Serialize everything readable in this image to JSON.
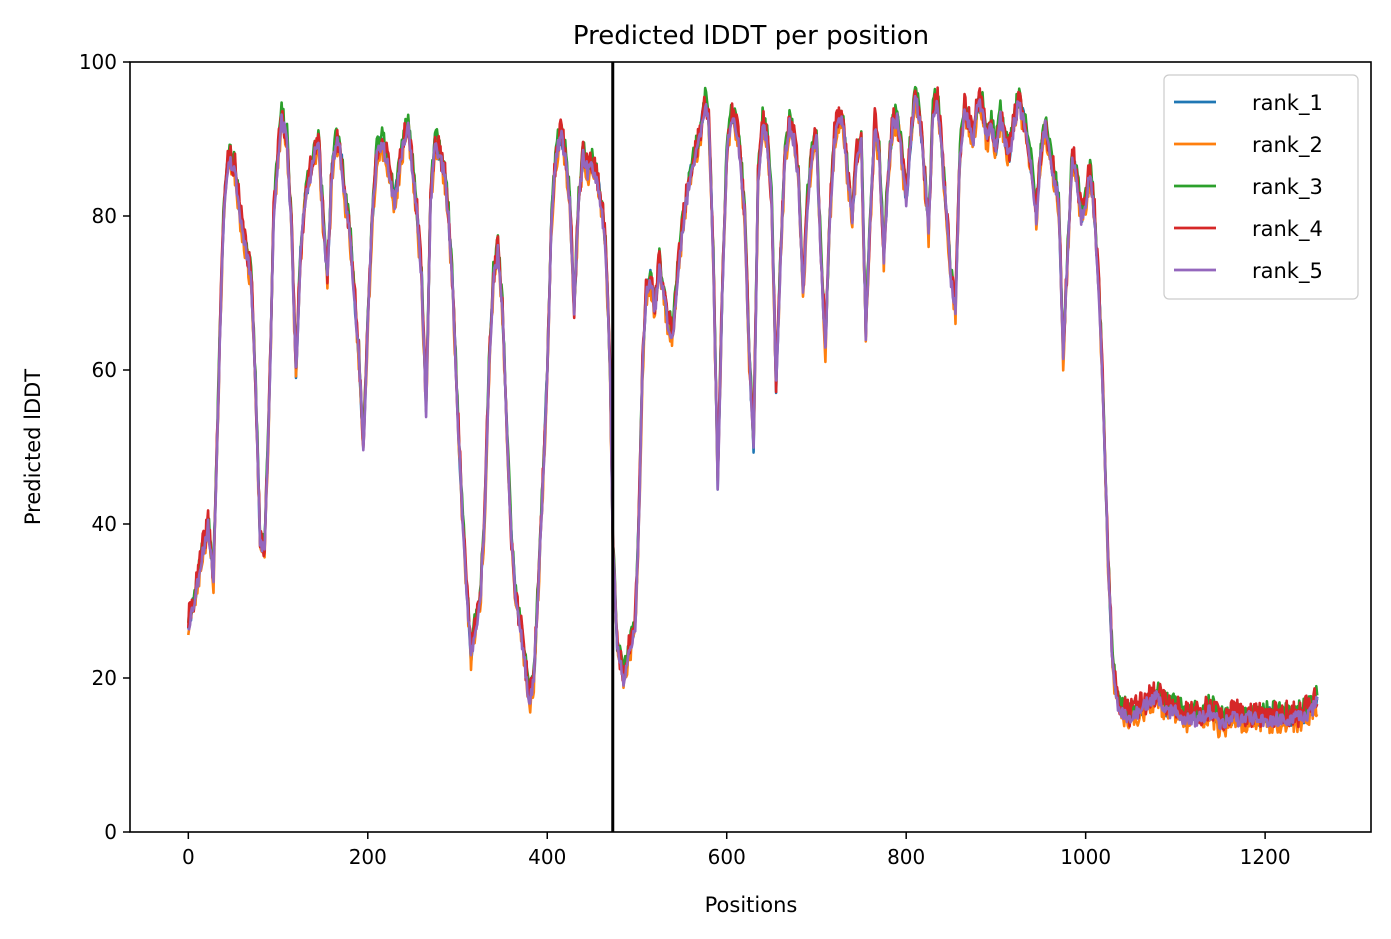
{
  "chart_data": {
    "type": "line",
    "title": "Predicted lDDT per position",
    "xlabel": "Positions",
    "ylabel": "Predicted lDDT",
    "xlim": [
      -65,
      1318
    ],
    "ylim": [
      0,
      100
    ],
    "xticks": [
      0,
      200,
      400,
      600,
      800,
      1000,
      1200
    ],
    "yticks": [
      0,
      20,
      40,
      60,
      80,
      100
    ],
    "grid": false,
    "legend_position": "top-right",
    "vline_x": 473,
    "vline_color": "#000000",
    "profile": [
      [
        0,
        27
      ],
      [
        8,
        31
      ],
      [
        15,
        36
      ],
      [
        22,
        40
      ],
      [
        28,
        33
      ],
      [
        32,
        50
      ],
      [
        36,
        68
      ],
      [
        40,
        82
      ],
      [
        45,
        88
      ],
      [
        52,
        86
      ],
      [
        58,
        80
      ],
      [
        64,
        76
      ],
      [
        70,
        72
      ],
      [
        75,
        58
      ],
      [
        80,
        38
      ],
      [
        85,
        37
      ],
      [
        90,
        55
      ],
      [
        95,
        80
      ],
      [
        100,
        88
      ],
      [
        104,
        93
      ],
      [
        110,
        90
      ],
      [
        115,
        78
      ],
      [
        120,
        60
      ],
      [
        125,
        75
      ],
      [
        130,
        82
      ],
      [
        135,
        85
      ],
      [
        140,
        88
      ],
      [
        145,
        90
      ],
      [
        150,
        80
      ],
      [
        155,
        72
      ],
      [
        160,
        86
      ],
      [
        165,
        90
      ],
      [
        170,
        88
      ],
      [
        175,
        82
      ],
      [
        180,
        78
      ],
      [
        185,
        70
      ],
      [
        190,
        62
      ],
      [
        195,
        50
      ],
      [
        200,
        66
      ],
      [
        205,
        80
      ],
      [
        210,
        88
      ],
      [
        215,
        90
      ],
      [
        220,
        88
      ],
      [
        225,
        85
      ],
      [
        230,
        82
      ],
      [
        235,
        86
      ],
      [
        240,
        90
      ],
      [
        245,
        92
      ],
      [
        250,
        86
      ],
      [
        255,
        80
      ],
      [
        260,
        72
      ],
      [
        265,
        55
      ],
      [
        270,
        82
      ],
      [
        275,
        90
      ],
      [
        280,
        88
      ],
      [
        285,
        86
      ],
      [
        290,
        80
      ],
      [
        295,
        70
      ],
      [
        300,
        55
      ],
      [
        305,
        42
      ],
      [
        310,
        32
      ],
      [
        315,
        23
      ],
      [
        320,
        27
      ],
      [
        325,
        30
      ],
      [
        330,
        40
      ],
      [
        335,
        60
      ],
      [
        340,
        72
      ],
      [
        345,
        76
      ],
      [
        350,
        68
      ],
      [
        355,
        52
      ],
      [
        360,
        38
      ],
      [
        365,
        30
      ],
      [
        370,
        27
      ],
      [
        375,
        22
      ],
      [
        380,
        17
      ],
      [
        385,
        20
      ],
      [
        390,
        32
      ],
      [
        395,
        45
      ],
      [
        400,
        60
      ],
      [
        405,
        80
      ],
      [
        410,
        88
      ],
      [
        415,
        91
      ],
      [
        420,
        88
      ],
      [
        425,
        82
      ],
      [
        430,
        68
      ],
      [
        435,
        82
      ],
      [
        440,
        88
      ],
      [
        445,
        86
      ],
      [
        450,
        87
      ],
      [
        455,
        85
      ],
      [
        460,
        82
      ],
      [
        465,
        76
      ],
      [
        470,
        60
      ],
      [
        473,
        38
      ],
      [
        478,
        24
      ],
      [
        485,
        20
      ],
      [
        492,
        24
      ],
      [
        498,
        27
      ],
      [
        502,
        40
      ],
      [
        506,
        60
      ],
      [
        510,
        70
      ],
      [
        515,
        72
      ],
      [
        520,
        68
      ],
      [
        525,
        74
      ],
      [
        530,
        70
      ],
      [
        535,
        66
      ],
      [
        540,
        65
      ],
      [
        545,
        72
      ],
      [
        550,
        78
      ],
      [
        555,
        82
      ],
      [
        560,
        86
      ],
      [
        565,
        88
      ],
      [
        570,
        90
      ],
      [
        576,
        95
      ],
      [
        580,
        92
      ],
      [
        585,
        75
      ],
      [
        590,
        45
      ],
      [
        595,
        70
      ],
      [
        600,
        88
      ],
      [
        605,
        93
      ],
      [
        610,
        92
      ],
      [
        615,
        88
      ],
      [
        620,
        80
      ],
      [
        625,
        62
      ],
      [
        630,
        50
      ],
      [
        635,
        85
      ],
      [
        640,
        92
      ],
      [
        645,
        90
      ],
      [
        650,
        82
      ],
      [
        655,
        58
      ],
      [
        660,
        75
      ],
      [
        665,
        88
      ],
      [
        670,
        92
      ],
      [
        675,
        90
      ],
      [
        680,
        85
      ],
      [
        685,
        70
      ],
      [
        690,
        82
      ],
      [
        695,
        88
      ],
      [
        700,
        90
      ],
      [
        705,
        75
      ],
      [
        710,
        63
      ],
      [
        715,
        80
      ],
      [
        720,
        90
      ],
      [
        725,
        93
      ],
      [
        730,
        92
      ],
      [
        735,
        85
      ],
      [
        740,
        80
      ],
      [
        745,
        88
      ],
      [
        750,
        90
      ],
      [
        755,
        65
      ],
      [
        760,
        80
      ],
      [
        765,
        92
      ],
      [
        770,
        88
      ],
      [
        775,
        75
      ],
      [
        780,
        85
      ],
      [
        785,
        92
      ],
      [
        790,
        93
      ],
      [
        795,
        88
      ],
      [
        800,
        82
      ],
      [
        805,
        90
      ],
      [
        810,
        96
      ],
      [
        815,
        93
      ],
      [
        820,
        86
      ],
      [
        825,
        78
      ],
      [
        830,
        94
      ],
      [
        835,
        95
      ],
      [
        840,
        88
      ],
      [
        845,
        80
      ],
      [
        850,
        72
      ],
      [
        855,
        68
      ],
      [
        860,
        88
      ],
      [
        865,
        94
      ],
      [
        870,
        92
      ],
      [
        875,
        90
      ],
      [
        880,
        95
      ],
      [
        885,
        94
      ],
      [
        890,
        90
      ],
      [
        895,
        92
      ],
      [
        900,
        89
      ],
      [
        905,
        93
      ],
      [
        910,
        90
      ],
      [
        915,
        88
      ],
      [
        920,
        92
      ],
      [
        925,
        95
      ],
      [
        930,
        93
      ],
      [
        935,
        90
      ],
      [
        940,
        86
      ],
      [
        945,
        80
      ],
      [
        950,
        88
      ],
      [
        955,
        92
      ],
      [
        960,
        88
      ],
      [
        965,
        85
      ],
      [
        970,
        82
      ],
      [
        975,
        62
      ],
      [
        980,
        75
      ],
      [
        985,
        88
      ],
      [
        990,
        85
      ],
      [
        995,
        80
      ],
      [
        1000,
        82
      ],
      [
        1005,
        86
      ],
      [
        1010,
        80
      ],
      [
        1015,
        70
      ],
      [
        1020,
        55
      ],
      [
        1025,
        35
      ],
      [
        1030,
        22
      ],
      [
        1035,
        17
      ],
      [
        1040,
        16
      ],
      [
        1050,
        15
      ],
      [
        1060,
        16
      ],
      [
        1070,
        17
      ],
      [
        1080,
        18
      ],
      [
        1090,
        16
      ],
      [
        1100,
        16
      ],
      [
        1110,
        15
      ],
      [
        1120,
        15
      ],
      [
        1130,
        15
      ],
      [
        1140,
        16
      ],
      [
        1150,
        14
      ],
      [
        1160,
        15
      ],
      [
        1170,
        15
      ],
      [
        1180,
        15
      ],
      [
        1190,
        15
      ],
      [
        1200,
        15
      ],
      [
        1210,
        15
      ],
      [
        1220,
        15
      ],
      [
        1230,
        15
      ],
      [
        1240,
        15
      ],
      [
        1250,
        16
      ],
      [
        1258,
        17
      ]
    ],
    "series": [
      {
        "name": "rank_1",
        "color": "#1f77b4",
        "offset": 0.0,
        "noise": 1.2,
        "seed": 11
      },
      {
        "name": "rank_2",
        "color": "#ff7f0e",
        "offset": -0.6,
        "noise": 1.6,
        "seed": 23
      },
      {
        "name": "rank_3",
        "color": "#2ca02c",
        "offset": 0.8,
        "noise": 1.3,
        "seed": 37
      },
      {
        "name": "rank_4",
        "color": "#d62728",
        "offset": 0.4,
        "noise": 1.8,
        "seed": 41
      },
      {
        "name": "rank_5",
        "color": "#9467bd",
        "offset": -0.3,
        "noise": 1.0,
        "seed": 53
      }
    ]
  }
}
